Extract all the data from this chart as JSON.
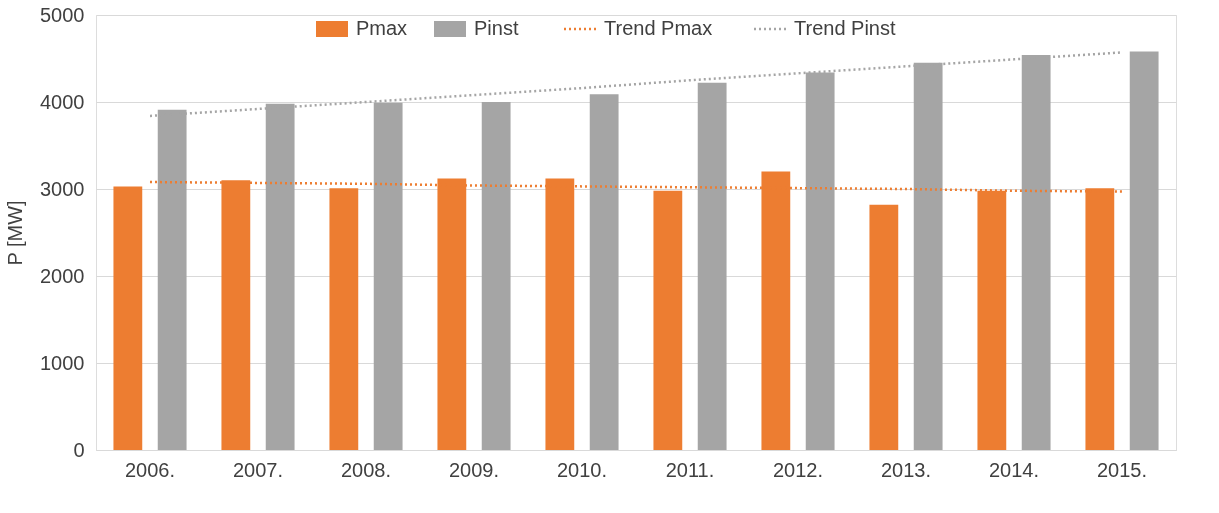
{
  "chart_data": {
    "type": "bar",
    "ylabel": "P [MW]",
    "categories": [
      "2006.",
      "2007.",
      "2008.",
      "2009.",
      "2010.",
      "2011.",
      "2012.",
      "2013.",
      "2014.",
      "2015."
    ],
    "series": [
      {
        "name": "Pmax",
        "color": "#ed7d31",
        "values": [
          3030,
          3100,
          3010,
          3120,
          3120,
          2980,
          3200,
          2820,
          2980,
          3010
        ]
      },
      {
        "name": "Pinst",
        "color": "#a5a5a5",
        "values": [
          3910,
          3980,
          3990,
          4000,
          4090,
          4220,
          4340,
          4450,
          4540,
          4580
        ]
      },
      {
        "name": "Trend Pmax",
        "type": "line",
        "line_style": "dotted",
        "color": "#ed7d31",
        "values": [
          3080,
          3070,
          3060,
          3040,
          3030,
          3020,
          3010,
          3000,
          2980,
          2970
        ]
      },
      {
        "name": "Trend Pinst",
        "type": "line",
        "line_style": "dotted",
        "color": "#a5a5a5",
        "values": [
          3840,
          3920,
          4000,
          4080,
          4160,
          4250,
          4330,
          4410,
          4490,
          4570
        ]
      }
    ],
    "ylim": [
      0,
      5000
    ],
    "yticks": [
      0,
      1000,
      2000,
      3000,
      4000,
      5000
    ],
    "grid": "y",
    "legend": "top"
  }
}
